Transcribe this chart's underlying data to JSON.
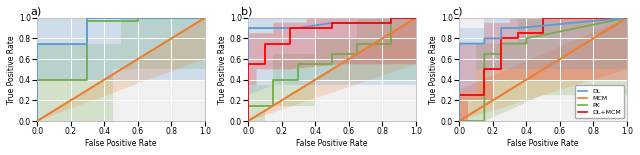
{
  "title_a": "a)",
  "title_b": "b)",
  "title_c": "c)",
  "xlabel": "False Positive Rate",
  "ylabel": "True Positive Rate",
  "legend_labels": [
    "DL",
    "MCM",
    "PK",
    "DL+MCM"
  ],
  "legend_colors": [
    "#5b9bd5",
    "#ed7d31",
    "#70ad47",
    "#ff0000"
  ],
  "panel_a": {
    "order": [
      "PK",
      "DL",
      "MCM"
    ],
    "DL": {
      "fpr": [
        0.0,
        0.0,
        0.0,
        0.3,
        0.3,
        1.0
      ],
      "tpr": [
        0.0,
        0.75,
        0.75,
        0.75,
        1.0,
        1.0
      ],
      "ci_upper": [
        [
          0.0,
          1.0
        ],
        [
          0.0,
          1.0
        ],
        [
          0.0,
          1.0
        ],
        [
          0.3,
          1.0
        ],
        [
          0.55,
          1.0
        ],
        [
          1.0,
          1.0
        ]
      ],
      "ci_lower": [
        [
          0.0,
          0.0
        ],
        [
          0.0,
          0.4
        ],
        [
          0.15,
          0.4
        ],
        [
          0.55,
          0.4
        ],
        [
          1.0,
          0.4
        ]
      ],
      "color": "#5b9bd5"
    },
    "MCM": {
      "fpr": [
        0.0,
        1.0
      ],
      "tpr": [
        0.0,
        1.0
      ],
      "ci_upper": [
        [
          0.0,
          0.0
        ],
        [
          1.0,
          1.0
        ]
      ],
      "ci_lower": [
        [
          0.0,
          0.0
        ],
        [
          1.0,
          0.6
        ]
      ],
      "color": "#ed7d31"
    },
    "PK": {
      "fpr": [
        0.0,
        0.0,
        0.3,
        0.3,
        0.6,
        0.6,
        1.0
      ],
      "tpr": [
        0.0,
        0.4,
        0.4,
        0.97,
        0.97,
        1.0,
        1.0
      ],
      "ci_upper": [
        [
          0.0,
          0.0
        ],
        [
          0.0,
          0.75
        ],
        [
          0.5,
          0.75
        ],
        [
          0.5,
          1.0
        ],
        [
          0.85,
          1.0
        ],
        [
          1.0,
          1.0
        ]
      ],
      "ci_lower": [
        [
          0.0,
          0.0
        ],
        [
          0.0,
          0.0
        ],
        [
          0.2,
          0.0
        ],
        [
          0.45,
          0.0
        ],
        [
          0.45,
          0.5
        ],
        [
          0.9,
          0.5
        ],
        [
          1.0,
          0.5
        ]
      ],
      "color": "#70ad47"
    }
  },
  "panel_b": {
    "order": [
      "PK",
      "MCM",
      "DL",
      "DL_MCM"
    ],
    "DL": {
      "fpr": [
        0.0,
        0.0,
        0.0,
        0.15,
        0.15,
        0.3,
        0.3,
        0.5,
        0.5,
        0.85,
        0.85,
        1.0
      ],
      "tpr": [
        0.0,
        0.9,
        0.9,
        0.9,
        0.9,
        0.9,
        0.9,
        0.95,
        0.95,
        0.95,
        1.0,
        1.0
      ],
      "ci_upper": [
        [
          0.0,
          0.0
        ],
        [
          0.0,
          1.0
        ],
        [
          0.15,
          1.0
        ],
        [
          0.15,
          1.0
        ],
        [
          0.35,
          1.0
        ],
        [
          0.65,
          1.0
        ],
        [
          1.0,
          1.0
        ]
      ],
      "ci_lower": [
        [
          0.0,
          0.0
        ],
        [
          0.0,
          0.25
        ],
        [
          0.0,
          0.25
        ],
        [
          0.15,
          0.35
        ],
        [
          0.45,
          0.35
        ],
        [
          0.8,
          0.35
        ],
        [
          1.0,
          0.35
        ]
      ],
      "color": "#5b9bd5"
    },
    "MCM": {
      "fpr": [
        0.0,
        1.0
      ],
      "tpr": [
        0.0,
        1.0
      ],
      "ci_upper": [
        [
          0.0,
          0.0
        ],
        [
          1.0,
          1.0
        ]
      ],
      "ci_lower": [
        [
          0.0,
          0.0
        ],
        [
          1.0,
          0.55
        ]
      ],
      "color": "#ed7d31"
    },
    "PK": {
      "fpr": [
        0.0,
        0.0,
        0.15,
        0.15,
        0.3,
        0.3,
        0.5,
        0.5,
        0.65,
        0.65,
        0.85,
        0.85,
        1.0
      ],
      "tpr": [
        0.0,
        0.15,
        0.15,
        0.4,
        0.4,
        0.55,
        0.55,
        0.65,
        0.65,
        0.75,
        0.75,
        1.0,
        1.0
      ],
      "ci_upper": [
        [
          0.0,
          0.0
        ],
        [
          0.0,
          0.35
        ],
        [
          0.15,
          0.35
        ],
        [
          0.15,
          0.65
        ],
        [
          0.4,
          0.65
        ],
        [
          0.4,
          0.8
        ],
        [
          0.65,
          0.8
        ],
        [
          0.65,
          1.0
        ],
        [
          1.0,
          1.0
        ]
      ],
      "ci_lower": [
        [
          0.0,
          0.0
        ],
        [
          0.0,
          0.0
        ],
        [
          0.1,
          0.0
        ],
        [
          0.1,
          0.15
        ],
        [
          0.4,
          0.15
        ],
        [
          0.4,
          0.4
        ],
        [
          0.75,
          0.4
        ],
        [
          1.0,
          0.4
        ]
      ],
      "color": "#70ad47"
    },
    "DL_MCM": {
      "fpr": [
        0.0,
        0.0,
        0.1,
        0.1,
        0.25,
        0.25,
        0.5,
        0.5,
        0.85,
        0.85,
        1.0
      ],
      "tpr": [
        0.0,
        0.55,
        0.55,
        0.75,
        0.75,
        0.9,
        0.9,
        0.95,
        0.95,
        1.0,
        1.0
      ],
      "ci_upper": [
        [
          0.0,
          0.0
        ],
        [
          0.0,
          0.85
        ],
        [
          0.15,
          0.85
        ],
        [
          0.15,
          0.95
        ],
        [
          0.35,
          0.95
        ],
        [
          0.35,
          1.0
        ],
        [
          0.6,
          1.0
        ],
        [
          1.0,
          1.0
        ]
      ],
      "ci_lower": [
        [
          0.0,
          0.0
        ],
        [
          0.0,
          0.35
        ],
        [
          0.05,
          0.35
        ],
        [
          0.05,
          0.5
        ],
        [
          0.25,
          0.5
        ],
        [
          0.55,
          0.55
        ],
        [
          0.75,
          0.55
        ],
        [
          1.0,
          0.55
        ]
      ],
      "color": "#ff0000"
    }
  },
  "panel_c": {
    "order": [
      "PK",
      "MCM",
      "DL_MCM",
      "DL"
    ],
    "DL": {
      "fpr": [
        0.0,
        0.0,
        0.15,
        0.15,
        0.25,
        0.25,
        0.35,
        0.35,
        1.0
      ],
      "tpr": [
        0.0,
        0.75,
        0.75,
        0.8,
        0.8,
        0.9,
        0.9,
        0.9,
        1.0
      ],
      "ci_upper": [
        [
          0.0,
          0.0
        ],
        [
          0.0,
          0.9
        ],
        [
          0.15,
          0.9
        ],
        [
          0.15,
          1.0
        ],
        [
          0.4,
          1.0
        ],
        [
          0.7,
          1.0
        ],
        [
          1.0,
          1.0
        ]
      ],
      "ci_lower": [
        [
          0.0,
          0.0
        ],
        [
          0.0,
          0.25
        ],
        [
          0.1,
          0.25
        ],
        [
          0.1,
          0.5
        ],
        [
          0.4,
          0.5
        ],
        [
          0.65,
          0.5
        ],
        [
          1.0,
          0.5
        ]
      ],
      "color": "#5b9bd5"
    },
    "MCM": {
      "fpr": [
        0.0,
        1.0
      ],
      "tpr": [
        0.0,
        1.0
      ],
      "ci_upper": [
        [
          0.0,
          0.3
        ],
        [
          1.0,
          1.0
        ]
      ],
      "ci_lower": [
        [
          0.0,
          0.0
        ],
        [
          1.0,
          0.5
        ]
      ],
      "color": "#ed7d31"
    },
    "PK": {
      "fpr": [
        0.0,
        0.0,
        0.15,
        0.15,
        0.25,
        0.25,
        0.4,
        0.4,
        1.0
      ],
      "tpr": [
        0.0,
        0.0,
        0.0,
        0.65,
        0.65,
        0.75,
        0.75,
        0.8,
        1.0
      ],
      "ci_upper": [
        [
          0.0,
          0.0
        ],
        [
          0.0,
          0.25
        ],
        [
          0.1,
          0.25
        ],
        [
          0.1,
          0.75
        ],
        [
          0.35,
          0.75
        ],
        [
          0.35,
          1.0
        ],
        [
          0.65,
          1.0
        ],
        [
          1.0,
          1.0
        ]
      ],
      "ci_lower": [
        [
          0.0,
          0.0
        ],
        [
          0.0,
          0.0
        ],
        [
          0.15,
          0.0
        ],
        [
          0.15,
          0.0
        ],
        [
          0.5,
          0.25
        ],
        [
          0.5,
          0.25
        ],
        [
          0.75,
          0.25
        ],
        [
          0.9,
          0.25
        ],
        [
          1.0,
          0.25
        ]
      ],
      "color": "#70ad47"
    },
    "DL_MCM": {
      "fpr": [
        0.0,
        0.0,
        0.15,
        0.15,
        0.25,
        0.25,
        0.35,
        0.35,
        0.5,
        0.5,
        1.0
      ],
      "tpr": [
        0.0,
        0.25,
        0.25,
        0.5,
        0.5,
        0.8,
        0.8,
        0.85,
        0.85,
        1.0,
        1.0
      ],
      "ci_upper": [
        [
          0.0,
          0.0
        ],
        [
          0.0,
          0.75
        ],
        [
          0.15,
          0.75
        ],
        [
          0.15,
          0.95
        ],
        [
          0.3,
          0.95
        ],
        [
          0.3,
          1.0
        ],
        [
          0.5,
          1.0
        ],
        [
          0.75,
          1.0
        ],
        [
          1.0,
          1.0
        ]
      ],
      "ci_lower": [
        [
          0.0,
          0.0
        ],
        [
          0.0,
          0.0
        ],
        [
          0.05,
          0.0
        ],
        [
          0.05,
          0.2
        ],
        [
          0.2,
          0.2
        ],
        [
          0.2,
          0.4
        ],
        [
          0.45,
          0.4
        ],
        [
          0.7,
          0.4
        ],
        [
          1.0,
          0.4
        ]
      ],
      "color": "#ff0000"
    }
  },
  "bg_color": "#f0f0f0",
  "diagonal_color": "#ed7d31"
}
